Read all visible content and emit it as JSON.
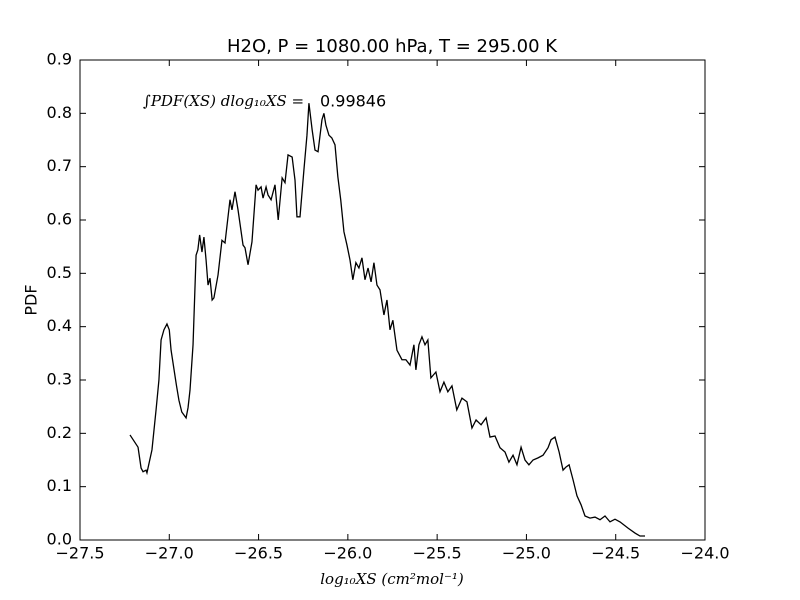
{
  "chart_data": {
    "type": "line",
    "title": "H2O, P = 1080.00 hPa, T = 295.00 K",
    "xlabel": "log₁₀XS (cm²mol⁻¹)",
    "ylabel": "PDF",
    "annotation": {
      "label": "∫PDF(XS) dlog₁₀XS =",
      "value": 0.99846
    },
    "xlim": [
      -27.5,
      -24.0
    ],
    "xticks": [
      {
        "value": -27.5,
        "label": "−27.5"
      },
      {
        "value": -27.0,
        "label": "−27.0"
      },
      {
        "value": -26.5,
        "label": "−26.5"
      },
      {
        "value": -26.0,
        "label": "−26.0"
      },
      {
        "value": -25.5,
        "label": "−25.5"
      },
      {
        "value": -25.0,
        "label": "−25.0"
      },
      {
        "value": -24.5,
        "label": "−24.5"
      },
      {
        "value": -24.0,
        "label": "−24.0"
      }
    ],
    "ylim": [
      0,
      0.9
    ],
    "yticks": [
      {
        "value": 0,
        "label": "0.0"
      },
      0.1,
      0.2,
      0.3,
      0.4,
      0.5,
      0.6,
      0.7,
      0.8,
      0.9
    ],
    "grid": false,
    "series": [
      {
        "name": "PDF",
        "color": "#000000",
        "x": [
          -27.22,
          -27.175,
          -27.158,
          -27.147,
          -27.13,
          -27.125,
          -27.097,
          -27.074,
          -27.058,
          -27.046,
          -27.03,
          -27.013,
          -27.0,
          -26.99,
          -26.96,
          -26.946,
          -26.93,
          -26.906,
          -26.895,
          -26.884,
          -26.867,
          -26.85,
          -26.84,
          -26.83,
          -26.817,
          -26.806,
          -26.794,
          -26.783,
          -26.772,
          -26.76,
          -26.75,
          -26.727,
          -26.705,
          -26.688,
          -26.66,
          -26.649,
          -26.632,
          -26.615,
          -26.587,
          -26.576,
          -26.559,
          -26.537,
          -26.514,
          -26.503,
          -26.486,
          -26.475,
          -26.458,
          -26.447,
          -26.43,
          -26.408,
          -26.39,
          -26.368,
          -26.352,
          -26.335,
          -26.312,
          -26.296,
          -26.285,
          -26.268,
          -26.246,
          -26.229,
          -26.218,
          -26.2,
          -26.184,
          -26.167,
          -26.145,
          -26.134,
          -26.123,
          -26.106,
          -26.09,
          -26.072,
          -26.056,
          -26.04,
          -26.022,
          -26.005,
          -25.988,
          -25.972,
          -25.955,
          -25.938,
          -25.921,
          -25.904,
          -25.887,
          -25.87,
          -25.854,
          -25.837,
          -25.82,
          -25.798,
          -25.781,
          -25.764,
          -25.748,
          -25.725,
          -25.697,
          -25.675,
          -25.652,
          -25.63,
          -25.619,
          -25.602,
          -25.585,
          -25.568,
          -25.552,
          -25.535,
          -25.507,
          -25.484,
          -25.462,
          -25.44,
          -25.417,
          -25.39,
          -25.361,
          -25.333,
          -25.305,
          -25.282,
          -25.254,
          -25.226,
          -25.204,
          -25.176,
          -25.148,
          -25.12,
          -25.098,
          -25.075,
          -25.053,
          -25.03,
          -25.008,
          -24.986,
          -24.963,
          -24.935,
          -24.907,
          -24.879,
          -24.862,
          -24.84,
          -24.817,
          -24.795,
          -24.778,
          -24.761,
          -24.739,
          -24.717,
          -24.694,
          -24.672,
          -24.644,
          -24.616,
          -24.588,
          -24.56,
          -24.532,
          -24.504,
          -24.476,
          -24.43,
          -24.392,
          -24.364,
          -24.336
        ],
        "values": [
          0.197,
          0.174,
          0.135,
          0.128,
          0.131,
          0.126,
          0.169,
          0.244,
          0.3,
          0.375,
          0.394,
          0.405,
          0.394,
          0.356,
          0.29,
          0.262,
          0.24,
          0.229,
          0.248,
          0.281,
          0.366,
          0.534,
          0.544,
          0.572,
          0.54,
          0.568,
          0.525,
          0.478,
          0.491,
          0.45,
          0.454,
          0.497,
          0.562,
          0.557,
          0.638,
          0.619,
          0.653,
          0.619,
          0.553,
          0.548,
          0.516,
          0.559,
          0.666,
          0.656,
          0.662,
          0.641,
          0.662,
          0.647,
          0.638,
          0.666,
          0.6,
          0.679,
          0.67,
          0.722,
          0.718,
          0.675,
          0.606,
          0.606,
          0.694,
          0.759,
          0.819,
          0.769,
          0.731,
          0.728,
          0.788,
          0.8,
          0.778,
          0.759,
          0.754,
          0.741,
          0.681,
          0.638,
          0.578,
          0.553,
          0.525,
          0.488,
          0.52,
          0.51,
          0.529,
          0.488,
          0.51,
          0.484,
          0.52,
          0.478,
          0.469,
          0.422,
          0.45,
          0.394,
          0.412,
          0.356,
          0.338,
          0.338,
          0.328,
          0.366,
          0.319,
          0.366,
          0.381,
          0.366,
          0.375,
          0.304,
          0.315,
          0.278,
          0.296,
          0.278,
          0.289,
          0.244,
          0.266,
          0.259,
          0.21,
          0.225,
          0.216,
          0.229,
          0.193,
          0.195,
          0.173,
          0.165,
          0.146,
          0.159,
          0.141,
          0.174,
          0.15,
          0.141,
          0.15,
          0.154,
          0.159,
          0.173,
          0.188,
          0.193,
          0.165,
          0.131,
          0.137,
          0.141,
          0.113,
          0.083,
          0.066,
          0.045,
          0.041,
          0.043,
          0.038,
          0.045,
          0.034,
          0.039,
          0.034,
          0.022,
          0.013,
          0.0075,
          0.0075
        ]
      }
    ]
  }
}
